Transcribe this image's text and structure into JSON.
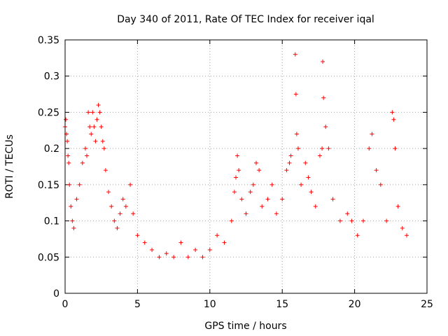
{
  "chart_data": {
    "type": "scatter",
    "title": "Day 340 of 2011, Rate Of TEC Index for receiver iqal",
    "xlabel": "GPS time / hours",
    "ylabel": "ROTI / TECUs",
    "xlim": [
      0,
      25
    ],
    "ylim": [
      0,
      0.35
    ],
    "xticks": [
      0,
      5,
      10,
      15,
      20,
      25
    ],
    "xtick_labels": [
      "0",
      "5",
      "10",
      "15",
      "20",
      "25"
    ],
    "yticks": [
      0,
      0.05,
      0.1,
      0.15,
      0.2,
      0.25,
      0.3,
      0.35
    ],
    "ytick_labels": [
      "0",
      "0.05",
      "0.1",
      "0.15",
      "0.2",
      "0.25",
      "0.3",
      "0.35"
    ],
    "grid": true,
    "marker": "plus",
    "color": "#ff0000",
    "series": [
      {
        "points": [
          [
            0.0,
            0.23
          ],
          [
            0.05,
            0.24
          ],
          [
            0.1,
            0.22
          ],
          [
            0.15,
            0.21
          ],
          [
            0.2,
            0.19
          ],
          [
            0.25,
            0.18
          ],
          [
            0.3,
            0.15
          ],
          [
            0.4,
            0.12
          ],
          [
            0.5,
            0.1
          ],
          [
            0.6,
            0.09
          ],
          [
            0.8,
            0.13
          ],
          [
            1.0,
            0.15
          ],
          [
            1.2,
            0.18
          ],
          [
            1.4,
            0.2
          ],
          [
            1.5,
            0.19
          ],
          [
            1.6,
            0.25
          ],
          [
            1.7,
            0.23
          ],
          [
            1.8,
            0.22
          ],
          [
            1.9,
            0.25
          ],
          [
            2.0,
            0.23
          ],
          [
            2.1,
            0.21
          ],
          [
            2.2,
            0.24
          ],
          [
            2.3,
            0.26
          ],
          [
            2.4,
            0.25
          ],
          [
            2.5,
            0.23
          ],
          [
            2.6,
            0.21
          ],
          [
            2.7,
            0.2
          ],
          [
            2.8,
            0.17
          ],
          [
            3.0,
            0.14
          ],
          [
            3.2,
            0.12
          ],
          [
            3.4,
            0.1
          ],
          [
            3.6,
            0.09
          ],
          [
            3.8,
            0.11
          ],
          [
            4.0,
            0.13
          ],
          [
            4.2,
            0.12
          ],
          [
            4.5,
            0.15
          ],
          [
            4.7,
            0.11
          ],
          [
            5.0,
            0.08
          ],
          [
            5.5,
            0.07
          ],
          [
            6.0,
            0.06
          ],
          [
            6.5,
            0.05
          ],
          [
            7.0,
            0.055
          ],
          [
            7.5,
            0.05
          ],
          [
            8.0,
            0.07
          ],
          [
            8.5,
            0.05
          ],
          [
            9.0,
            0.06
          ],
          [
            9.5,
            0.05
          ],
          [
            10.0,
            0.06
          ],
          [
            10.5,
            0.08
          ],
          [
            11.0,
            0.07
          ],
          [
            11.5,
            0.1
          ],
          [
            11.7,
            0.14
          ],
          [
            11.8,
            0.16
          ],
          [
            11.9,
            0.19
          ],
          [
            12.0,
            0.17
          ],
          [
            12.2,
            0.13
          ],
          [
            12.5,
            0.11
          ],
          [
            12.8,
            0.14
          ],
          [
            13.0,
            0.15
          ],
          [
            13.2,
            0.18
          ],
          [
            13.4,
            0.17
          ],
          [
            13.6,
            0.12
          ],
          [
            14.0,
            0.13
          ],
          [
            14.3,
            0.15
          ],
          [
            14.6,
            0.11
          ],
          [
            15.0,
            0.13
          ],
          [
            15.3,
            0.17
          ],
          [
            15.5,
            0.18
          ],
          [
            15.6,
            0.19
          ],
          [
            15.9,
            0.33
          ],
          [
            15.95,
            0.275
          ],
          [
            16.0,
            0.22
          ],
          [
            16.1,
            0.2
          ],
          [
            16.3,
            0.15
          ],
          [
            16.6,
            0.18
          ],
          [
            16.8,
            0.16
          ],
          [
            17.0,
            0.14
          ],
          [
            17.3,
            0.12
          ],
          [
            17.6,
            0.19
          ],
          [
            17.75,
            0.2
          ],
          [
            17.8,
            0.32
          ],
          [
            17.85,
            0.27
          ],
          [
            18.0,
            0.23
          ],
          [
            18.2,
            0.2
          ],
          [
            18.5,
            0.13
          ],
          [
            19.0,
            0.1
          ],
          [
            19.5,
            0.11
          ],
          [
            19.8,
            0.1
          ],
          [
            20.2,
            0.08
          ],
          [
            20.6,
            0.1
          ],
          [
            21.0,
            0.2
          ],
          [
            21.2,
            0.22
          ],
          [
            21.5,
            0.17
          ],
          [
            21.8,
            0.15
          ],
          [
            22.2,
            0.1
          ],
          [
            22.6,
            0.25
          ],
          [
            22.7,
            0.24
          ],
          [
            22.8,
            0.2
          ],
          [
            23.0,
            0.12
          ],
          [
            23.3,
            0.09
          ],
          [
            23.6,
            0.08
          ]
        ]
      }
    ]
  }
}
